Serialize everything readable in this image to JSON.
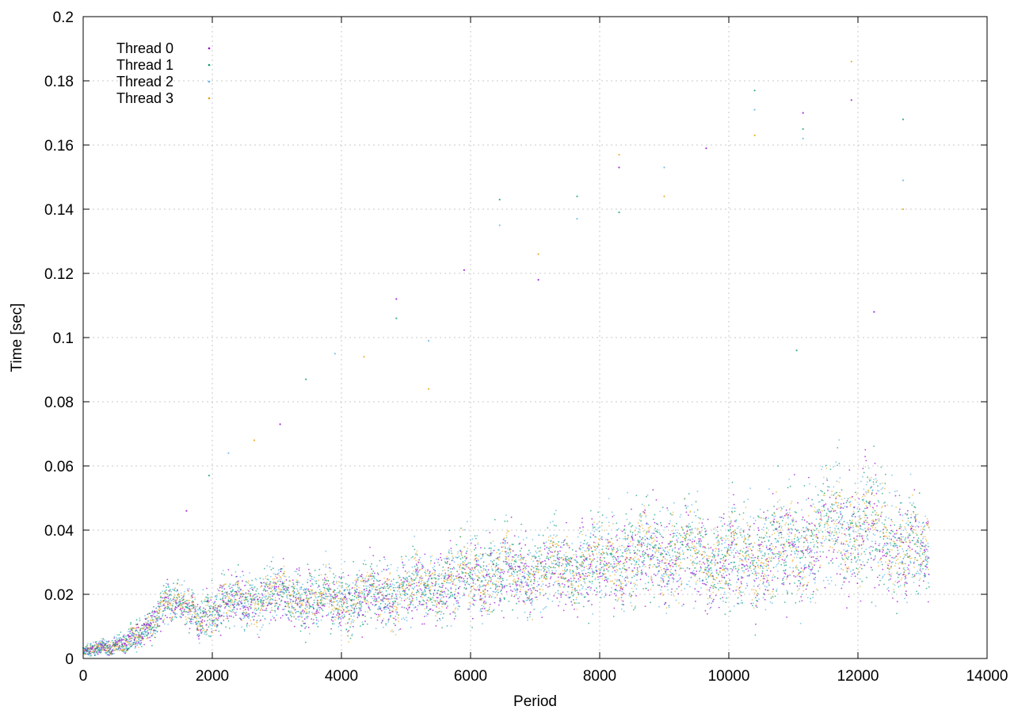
{
  "chart_data": {
    "type": "scatter",
    "title": "",
    "xlabel": "Period",
    "ylabel": "Time [sec]",
    "xlim": [
      0,
      14000
    ],
    "ylim": [
      0,
      0.2
    ],
    "x_ticks": [
      0,
      2000,
      4000,
      6000,
      8000,
      10000,
      12000,
      14000
    ],
    "x_tick_labels": [
      "0",
      "2000",
      "4000",
      "6000",
      "8000",
      "10000",
      "12000",
      "14000"
    ],
    "y_ticks": [
      0,
      0.02,
      0.04,
      0.06,
      0.08,
      0.1,
      0.12,
      0.14,
      0.16,
      0.18,
      0.2
    ],
    "y_tick_labels": [
      "0",
      "0.02",
      "0.04",
      "0.06",
      "0.08",
      "0.1",
      "0.12",
      "0.14",
      "0.16",
      "0.18",
      "0.2"
    ],
    "grid": true,
    "legend_position": "top-left",
    "marker": "dot",
    "series": [
      {
        "name": "Thread 0",
        "color": "#9400d3"
      },
      {
        "name": "Thread 1",
        "color": "#009e73"
      },
      {
        "name": "Thread 2",
        "color": "#56b4e9"
      },
      {
        "name": "Thread 3",
        "color": "#e69f00"
      }
    ],
    "trend": {
      "x": [
        0,
        500,
        1000,
        1300,
        1800,
        2000,
        3000,
        4000,
        5000,
        6000,
        7000,
        8000,
        9000,
        10000,
        11000,
        11800,
        12300,
        13100
      ],
      "median": [
        0.002,
        0.004,
        0.008,
        0.02,
        0.012,
        0.016,
        0.02,
        0.018,
        0.021,
        0.026,
        0.027,
        0.03,
        0.033,
        0.031,
        0.034,
        0.042,
        0.04,
        0.031
      ],
      "spread": [
        0.001,
        0.002,
        0.003,
        0.004,
        0.004,
        0.005,
        0.006,
        0.006,
        0.007,
        0.008,
        0.008,
        0.009,
        0.01,
        0.01,
        0.011,
        0.013,
        0.013,
        0.008
      ]
    },
    "outliers": [
      [
        1600,
        0.046
      ],
      [
        1950,
        0.057
      ],
      [
        2250,
        0.064
      ],
      [
        2650,
        0.068
      ],
      [
        3050,
        0.073
      ],
      [
        3450,
        0.087
      ],
      [
        3900,
        0.095
      ],
      [
        4350,
        0.094
      ],
      [
        4850,
        0.112
      ],
      [
        4850,
        0.106
      ],
      [
        5350,
        0.099
      ],
      [
        5350,
        0.084
      ],
      [
        5900,
        0.121
      ],
      [
        6450,
        0.143
      ],
      [
        6450,
        0.135
      ],
      [
        7050,
        0.126
      ],
      [
        7050,
        0.118
      ],
      [
        7650,
        0.144
      ],
      [
        7650,
        0.137
      ],
      [
        8300,
        0.157
      ],
      [
        8300,
        0.153
      ],
      [
        8300,
        0.139
      ],
      [
        9000,
        0.153
      ],
      [
        9000,
        0.144
      ],
      [
        9650,
        0.159
      ],
      [
        10400,
        0.177
      ],
      [
        10400,
        0.171
      ],
      [
        10400,
        0.163
      ],
      [
        11150,
        0.17
      ],
      [
        11150,
        0.165
      ],
      [
        11150,
        0.162
      ],
      [
        11900,
        0.186
      ],
      [
        11900,
        0.174
      ],
      [
        12700,
        0.168
      ],
      [
        12700,
        0.149
      ],
      [
        12700,
        0.14
      ],
      [
        12250,
        0.108
      ],
      [
        11050,
        0.096
      ]
    ]
  }
}
